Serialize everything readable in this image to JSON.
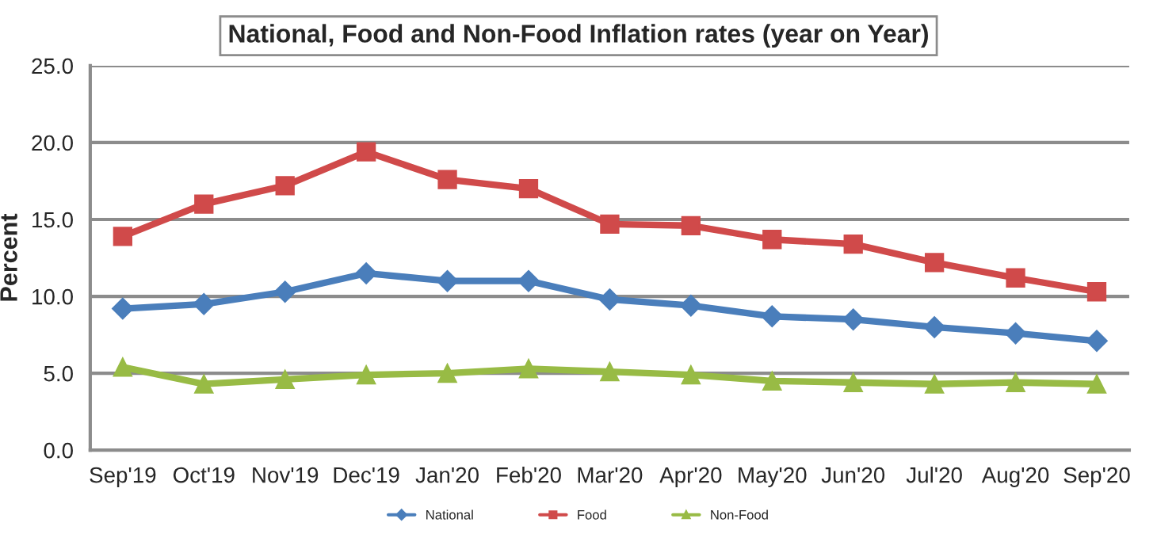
{
  "chart_data": {
    "type": "line",
    "title": "National, Food and Non-Food Inflation rates (year on Year)",
    "ylabel": "Percent",
    "categories": [
      "Sep'19",
      "Oct'19",
      "Nov'19",
      "Dec'19",
      "Jan'20",
      "Feb'20",
      "Mar'20",
      "Apr'20",
      "May'20",
      "Jun'20",
      "Jul'20",
      "Aug'20",
      "Sep'20"
    ],
    "series": [
      {
        "name": "National",
        "color": "#4a7ebb",
        "marker": "diamond",
        "values": [
          9.2,
          9.5,
          10.3,
          11.5,
          11.0,
          11.0,
          9.8,
          9.4,
          8.7,
          8.5,
          8.0,
          7.6,
          7.1
        ]
      },
      {
        "name": "Food",
        "color": "#d04a4a",
        "marker": "square",
        "values": [
          13.9,
          16.0,
          17.2,
          19.4,
          17.6,
          17.0,
          14.7,
          14.6,
          13.7,
          13.4,
          12.2,
          11.2,
          10.3
        ]
      },
      {
        "name": "Non-Food",
        "color": "#98bb45",
        "marker": "triangle",
        "values": [
          5.4,
          4.3,
          4.6,
          4.9,
          5.0,
          5.3,
          5.1,
          4.9,
          4.5,
          4.4,
          4.3,
          4.4,
          4.3
        ]
      }
    ],
    "ylim": [
      0,
      25
    ],
    "yticks": [
      {
        "value": 0,
        "label": "0.0"
      },
      {
        "value": 5,
        "label": "5.0"
      },
      {
        "value": 10,
        "label": "10.0"
      },
      {
        "value": 15,
        "label": "15.0"
      },
      {
        "value": 20,
        "label": "20.0"
      },
      {
        "value": 25,
        "label": "25.0"
      }
    ],
    "grid": "y",
    "legend": "bottom",
    "line_style": "solid"
  }
}
